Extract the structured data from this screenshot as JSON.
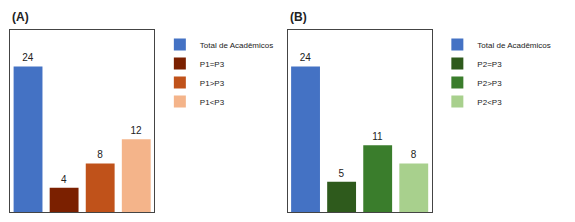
{
  "chart_data": [
    {
      "type": "bar",
      "title": "(A)",
      "categories": [
        "Total de Acadêmicos",
        "P1=P3",
        "P1>P3",
        "P1<P3"
      ],
      "values": [
        24,
        4,
        8,
        12
      ],
      "colors": [
        "#4472C4",
        "#7B2000",
        "#C0521A",
        "#F4B48A"
      ],
      "ylim": [
        0,
        30
      ],
      "grid": false,
      "data_labels": true,
      "tick_labels": false,
      "legend": "right"
    },
    {
      "type": "bar",
      "title": "(B)",
      "categories": [
        "Total de Acadêmicos",
        "P2=P3",
        "P2>P3",
        "P2<P3"
      ],
      "values": [
        24,
        5,
        11,
        8
      ],
      "colors": [
        "#4472C4",
        "#2E5A1C",
        "#3A7D2C",
        "#A8D08D"
      ],
      "ylim": [
        0,
        30
      ],
      "grid": false,
      "data_labels": true,
      "tick_labels": false,
      "legend": "right"
    }
  ]
}
